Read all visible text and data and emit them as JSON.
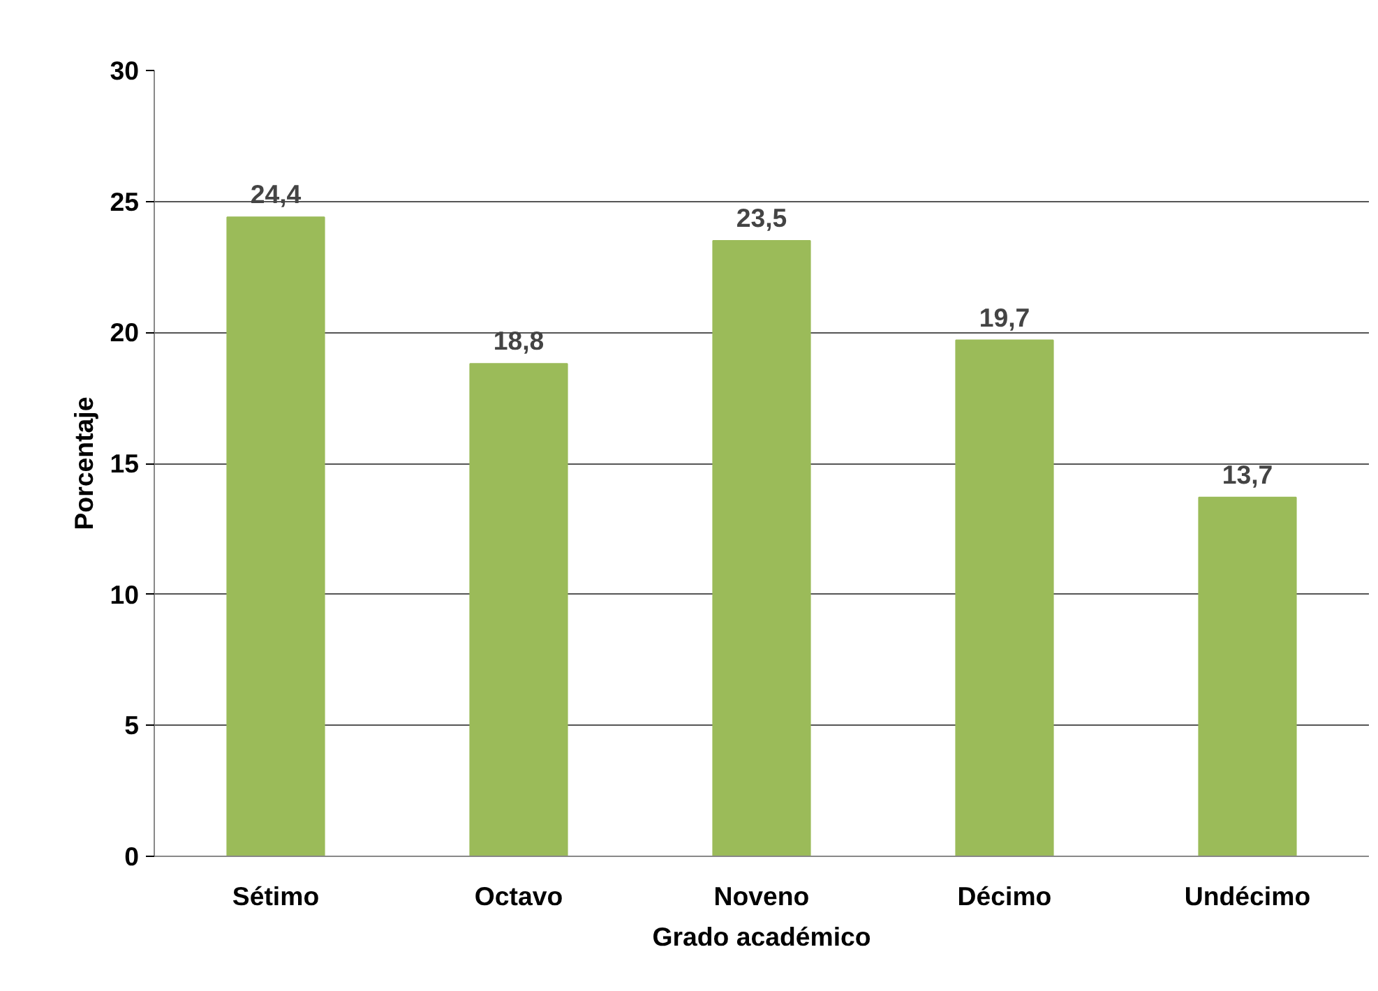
{
  "chart_data": {
    "type": "bar",
    "xlabel": "Grado académico",
    "ylabel": "Porcentaje",
    "categories": [
      "Sétimo",
      "Octavo",
      "Noveno",
      "Décimo",
      "Undécimo"
    ],
    "values": [
      24.4,
      18.8,
      23.5,
      19.7,
      13.7
    ],
    "color": "#9bbb59",
    "value_labels": [
      "24,4",
      "18,8",
      "23,5",
      "19,7",
      "13,7"
    ],
    "ylim": [
      0,
      30
    ],
    "yticks": [
      0,
      5,
      10,
      15,
      20,
      25,
      30
    ],
    "grid": "y"
  }
}
